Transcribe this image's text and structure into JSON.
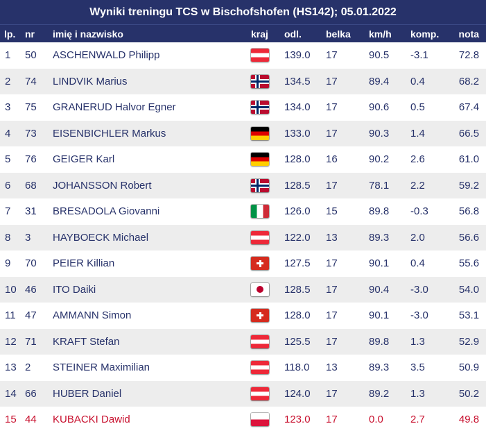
{
  "title": "Wyniki treningu TCS w Bischofshofen (HS142); 05.01.2022",
  "columns": {
    "lp": "lp.",
    "nr": "nr",
    "name": "imię i nazwisko",
    "kraj": "kraj",
    "odl": "odl.",
    "belka": "belka",
    "kmh": "km/h",
    "komp": "komp.",
    "nota": "nota"
  },
  "rows": [
    {
      "lp": "1",
      "nr": "50",
      "name": "ASCHENWALD Philipp",
      "flag": "aut-flag-icon",
      "odl": "139.0",
      "belka": "17",
      "kmh": "90.5",
      "komp": "-3.1",
      "nota": "72.8"
    },
    {
      "lp": "2",
      "nr": "74",
      "name": "LINDVIK Marius",
      "flag": "nor-flag-icon",
      "odl": "134.5",
      "belka": "17",
      "kmh": "89.4",
      "komp": "0.4",
      "nota": "68.2"
    },
    {
      "lp": "3",
      "nr": "75",
      "name": "GRANERUD Halvor Egner",
      "flag": "nor-flag-icon",
      "odl": "134.0",
      "belka": "17",
      "kmh": "90.6",
      "komp": "0.5",
      "nota": "67.4"
    },
    {
      "lp": "4",
      "nr": "73",
      "name": "EISENBICHLER Markus",
      "flag": "ger-flag-icon",
      "odl": "133.0",
      "belka": "17",
      "kmh": "90.3",
      "komp": "1.4",
      "nota": "66.5"
    },
    {
      "lp": "5",
      "nr": "76",
      "name": "GEIGER Karl",
      "flag": "ger-flag-icon",
      "odl": "128.0",
      "belka": "16",
      "kmh": "90.2",
      "komp": "2.6",
      "nota": "61.0"
    },
    {
      "lp": "6",
      "nr": "68",
      "name": "JOHANSSON Robert",
      "flag": "nor-flag-icon",
      "odl": "128.5",
      "belka": "17",
      "kmh": "78.1",
      "komp": "2.2",
      "nota": "59.2"
    },
    {
      "lp": "7",
      "nr": "31",
      "name": "BRESADOLA Giovanni",
      "flag": "ita-flag-icon",
      "odl": "126.0",
      "belka": "15",
      "kmh": "89.8",
      "komp": "-0.3",
      "nota": "56.8"
    },
    {
      "lp": "8",
      "nr": "3",
      "name": "HAYBOECK Michael",
      "flag": "aut-flag-icon",
      "odl": "122.0",
      "belka": "13",
      "kmh": "89.3",
      "komp": "2.0",
      "nota": "56.6"
    },
    {
      "lp": "9",
      "nr": "70",
      "name": "PEIER Killian",
      "flag": "sui-flag-icon",
      "odl": "127.5",
      "belka": "17",
      "kmh": "90.1",
      "komp": "0.4",
      "nota": "55.6"
    },
    {
      "lp": "10",
      "nr": "46",
      "name": "ITO Daiki",
      "flag": "jpn-flag-icon",
      "odl": "128.5",
      "belka": "17",
      "kmh": "90.4",
      "komp": "-3.0",
      "nota": "54.0"
    },
    {
      "lp": "11",
      "nr": "47",
      "name": "AMMANN Simon",
      "flag": "sui-flag-icon",
      "odl": "128.0",
      "belka": "17",
      "kmh": "90.1",
      "komp": "-3.0",
      "nota": "53.1"
    },
    {
      "lp": "12",
      "nr": "71",
      "name": "KRAFT Stefan",
      "flag": "aut-flag-icon",
      "odl": "125.5",
      "belka": "17",
      "kmh": "89.8",
      "komp": "1.3",
      "nota": "52.9"
    },
    {
      "lp": "13",
      "nr": "2",
      "name": "STEINER Maximilian",
      "flag": "aut-flag-icon",
      "odl": "118.0",
      "belka": "13",
      "kmh": "89.3",
      "komp": "3.5",
      "nota": "50.9"
    },
    {
      "lp": "14",
      "nr": "66",
      "name": "HUBER Daniel",
      "flag": "aut-flag-icon",
      "odl": "124.0",
      "belka": "17",
      "kmh": "89.2",
      "komp": "1.3",
      "nota": "50.2"
    },
    {
      "lp": "15",
      "nr": "44",
      "name": "KUBACKI Dawid",
      "flag": "pol-flag-icon",
      "odl": "123.0",
      "belka": "17",
      "kmh": "0.0",
      "komp": "2.7",
      "nota": "49.8",
      "highlight": true
    }
  ],
  "colors": {
    "header_bg": "#27326a",
    "text": "#27326a",
    "highlight_text": "#c8102e",
    "stripe": "#ededed"
  }
}
